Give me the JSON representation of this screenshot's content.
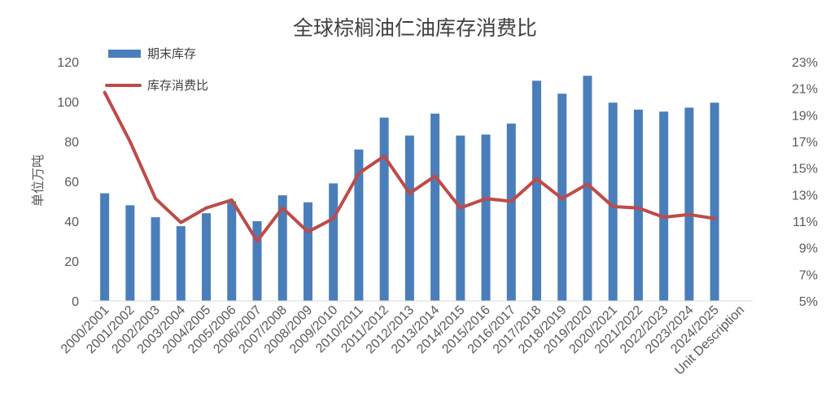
{
  "chart_data": {
    "type": "bar+line",
    "title": "全球棕榈油仁油库存消费比",
    "ylabel": "单位万吨",
    "ylabel_right": "",
    "xlabel": "",
    "categories": [
      "2000/2001",
      "2001/2002",
      "2002/2003",
      "2003/2004",
      "2004/2005",
      "2005/2006",
      "2006/2007",
      "2007/2008",
      "2008/2009",
      "2009/2010",
      "2010/2011",
      "2011/2012",
      "2012/2013",
      "2013/2014",
      "2014/2015",
      "2015/2016",
      "2016/2017",
      "2017/2018",
      "2018/2019",
      "2019/2020",
      "2020/2021",
      "2021/2022",
      "2022/2023",
      "2023/2024",
      "2024/2025"
    ],
    "extra_category": "Unit Description",
    "series": [
      {
        "name": "期末库存",
        "type": "bar",
        "axis": "left",
        "color": "#4a7ebb",
        "values": [
          54,
          48,
          42,
          37.5,
          44,
          50,
          40,
          53,
          49.5,
          59,
          76,
          92,
          83,
          94,
          83,
          83.5,
          89,
          110.5,
          104,
          113,
          99.5,
          96,
          95,
          97,
          99.5
        ]
      },
      {
        "name": "库存消费比",
        "type": "line",
        "axis": "right",
        "color": "#be4b48",
        "values": [
          20.7,
          17.0,
          12.7,
          10.9,
          12.0,
          12.6,
          9.5,
          12.0,
          10.2,
          11.2,
          14.6,
          15.9,
          13.1,
          14.4,
          12.0,
          12.7,
          12.5,
          14.2,
          12.7,
          13.8,
          12.1,
          12.0,
          11.3,
          11.5,
          11.2
        ]
      }
    ],
    "ylim": [
      0,
      120
    ],
    "yticks": [
      0,
      20,
      40,
      60,
      80,
      100,
      120
    ],
    "ylim_right": [
      5,
      23
    ],
    "yticks_right": [
      "5%",
      "7%",
      "9%",
      "11%",
      "13%",
      "15%",
      "17%",
      "19%",
      "21%",
      "23%"
    ],
    "legend_position": "top-left",
    "grid": false
  }
}
